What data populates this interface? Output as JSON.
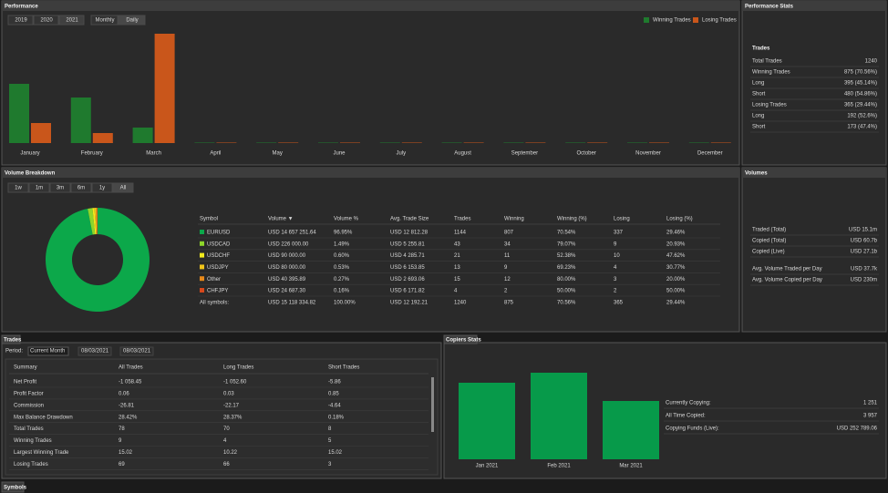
{
  "panels": {
    "performance": "Performance",
    "performance_stats": "Performance Stats",
    "volume_breakdown": "Volume Breakdown",
    "volumes": "Volumes",
    "trades": "Trades",
    "copiers_stats": "Copiers Stats",
    "symbols": "Symbols"
  },
  "year_buttons": [
    "2019",
    "2020",
    "2021"
  ],
  "mode_buttons": [
    "Monthly",
    "Daily"
  ],
  "range_tabs": [
    "1w",
    "1m",
    "3m",
    "6m",
    "1y",
    "All"
  ],
  "performance_stats": {
    "heading": "Trades",
    "rows": [
      [
        "Total Trades",
        "1240"
      ],
      [
        "Winning Trades",
        "875 (70.56%)"
      ],
      [
        "Long",
        "395 (45.14%)"
      ],
      [
        "Short",
        "480 (54.86%)"
      ],
      [
        "Losing Trades",
        "365 (29.44%)"
      ],
      [
        "Long",
        "192 (52.6%)"
      ],
      [
        "Short",
        "173 (47.4%)"
      ]
    ]
  },
  "volume_table": {
    "columns": [
      "Symbol",
      "Volume ▼",
      "Volume %",
      "Avg. Trade Size",
      "Trades",
      "Winning",
      "Winning (%)",
      "Losing",
      "Losing (%)"
    ],
    "rows": [
      [
        "USD 14 657 251.64",
        "96.95%",
        "USD 12 812.28",
        "1144",
        "807",
        "70.54%",
        "337",
        "29.46%"
      ],
      [
        "USD 226 000.00",
        "1.49%",
        "USD 5 255.81",
        "43",
        "34",
        "79.07%",
        "9",
        "20.93%"
      ],
      [
        "USD 90 000.00",
        "0.60%",
        "USD 4 285.71",
        "21",
        "11",
        "52.38%",
        "10",
        "47.62%"
      ],
      [
        "USD 80 000.00",
        "0.53%",
        "USD 6 153.85",
        "13",
        "9",
        "69.23%",
        "4",
        "30.77%"
      ],
      [
        "USD 40 395.89",
        "0.27%",
        "USD 2 693.06",
        "15",
        "12",
        "80.00%",
        "3",
        "20.00%"
      ],
      [
        "USD 24 687.30",
        "0.16%",
        "USD 6 171.82",
        "4",
        "2",
        "50.00%",
        "2",
        "50.00%"
      ]
    ],
    "total": [
      "All symbols:",
      "USD 15 118 334.82",
      "100.00%",
      "USD 12 192.21",
      "1240",
      "875",
      "70.56%",
      "365",
      "29.44%"
    ]
  },
  "volumes": [
    [
      [
        "Traded (Total)",
        "USD 15.1m"
      ],
      [
        "Copied (Total)",
        "USD 60.7b"
      ],
      [
        "Copied (Live)",
        "USD 27.1b"
      ]
    ],
    [
      [
        "Avg. Volume Traded per Day",
        "USD 37.7k"
      ],
      [
        "Avg. Volume Copied per Day",
        "USD 230m"
      ]
    ]
  ],
  "trades": {
    "period_label": "Period:",
    "period": "Current Month",
    "date_from": "08/03/2021",
    "date_to": "08/03/2021",
    "columns": [
      "Summary",
      "All Trades",
      "Long Trades",
      "Short Trades"
    ],
    "rows": [
      [
        "Net Profit",
        "-1 058.45",
        "-1 052.60",
        "-5.86"
      ],
      [
        "Profit Factor",
        "0.06",
        "0.03",
        "0.85"
      ],
      [
        "Commission",
        "-26.81",
        "-22.17",
        "-4.64"
      ],
      [
        "Max Balance Drawdown",
        "28.42%",
        "28.37%",
        "0.18%"
      ],
      [
        "Total Trades",
        "78",
        "70",
        "8"
      ],
      [
        "Winning Trades",
        "9",
        "4",
        "5"
      ],
      [
        "Largest Winning Trade",
        "15.02",
        "10.22",
        "15.02"
      ],
      [
        "Losing Trades",
        "69",
        "66",
        "3"
      ]
    ]
  },
  "copiers_stats": [
    [
      "Currently Copying:",
      "1 251"
    ],
    [
      "All Time Copied:",
      "3 957"
    ],
    [
      "Copying Funds (Live):",
      "USD 252 789.06"
    ]
  ],
  "chart_data": [
    {
      "type": "bar",
      "categories": [
        "January",
        "February",
        "March",
        "April",
        "May",
        "June",
        "July",
        "August",
        "September",
        "October",
        "November",
        "December"
      ],
      "series": [
        {
          "name": "Winning Trades",
          "color": "#1f7a2e",
          "values": [
            65,
            50,
            17,
            0,
            0,
            0,
            0,
            0,
            0,
            0,
            0,
            0
          ]
        },
        {
          "name": "Losing Trades",
          "color": "#c9561b",
          "values": [
            22,
            11,
            120,
            0,
            0,
            0,
            0,
            0,
            0,
            0,
            0,
            0
          ]
        }
      ],
      "ylim": [
        0,
        122
      ],
      "legend": "top-right"
    },
    {
      "type": "donut",
      "categories": [
        "EURUSD",
        "USDCAD",
        "USDCHF",
        "USDJPY",
        "Other",
        "CHFJPY"
      ],
      "values": [
        96.95,
        1.49,
        0.6,
        0.53,
        0.27,
        0.16
      ],
      "colors": [
        "#0ca84a",
        "#8ed62a",
        "#f2ea1c",
        "#f0c419",
        "#e88a1a",
        "#d6481c"
      ]
    },
    {
      "type": "bar",
      "categories": [
        "Jan 2021",
        "Feb 2021",
        "Mar 2021"
      ],
      "values": [
        84,
        95,
        64
      ],
      "color": "#079a4a",
      "ylim": [
        0,
        104
      ]
    }
  ]
}
